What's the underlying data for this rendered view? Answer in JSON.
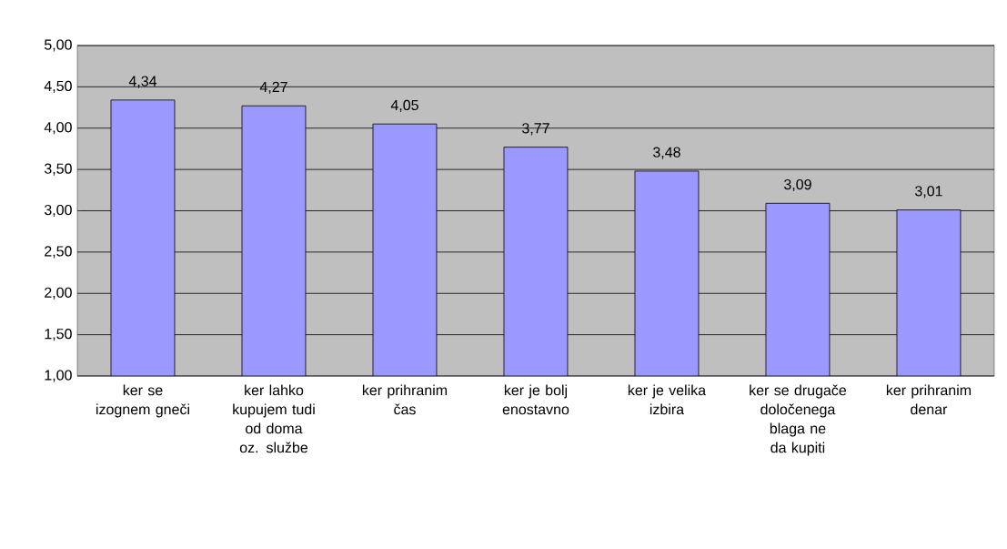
{
  "chart_data": {
    "type": "bar",
    "categories": [
      "ker se izognem gneči",
      "ker lahko kupujem tudi od doma oz. službe",
      "ker prihranim čas",
      "ker je bolj enostavno",
      "ker je velika izbira",
      "ker se drugače določenega blaga ne da kupiti",
      "ker prihranim denar"
    ],
    "values": [
      4.34,
      4.27,
      4.05,
      3.77,
      3.48,
      3.09,
      3.01
    ],
    "value_labels": [
      "4,34",
      "4,27",
      "4,05",
      "3,77",
      "3,48",
      "3,09",
      "3,01"
    ],
    "color": "#9999ff",
    "ylim": [
      1,
      5
    ],
    "yticks": [
      {
        "value": 1,
        "label": "1,00"
      },
      {
        "value": 1.5,
        "label": "1,50"
      },
      {
        "value": 2,
        "label": "2,00"
      },
      {
        "value": 2.5,
        "label": "2,50"
      },
      {
        "value": 3,
        "label": "3,00"
      },
      {
        "value": 3.5,
        "label": "3,50"
      },
      {
        "value": 4,
        "label": "4,00"
      },
      {
        "value": 4.5,
        "label": "4,50"
      },
      {
        "value": 5,
        "label": "5,00"
      }
    ],
    "grid": "y"
  }
}
